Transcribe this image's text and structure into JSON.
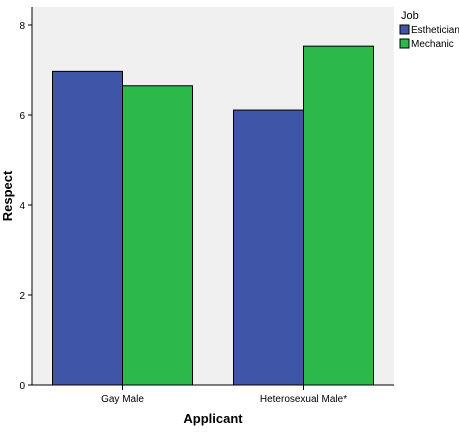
{
  "chart_data": {
    "type": "bar",
    "xlabel": "Applicant",
    "ylabel": "Respect",
    "categories": [
      "Gay Male",
      "Heterosexual Male*"
    ],
    "series": [
      {
        "name": "Esthetician",
        "values": [
          6.97,
          6.11
        ],
        "color": "#3f55a8"
      },
      {
        "name": "Mechanic",
        "values": [
          6.65,
          7.53
        ],
        "color": "#2db84a"
      }
    ],
    "ylim": [
      0,
      8.4
    ],
    "yticks": [
      0,
      2,
      4,
      6,
      8
    ],
    "legend": {
      "title": "Job",
      "position": "top-right"
    },
    "grid": false,
    "plot_background": "#f0f0f0"
  }
}
